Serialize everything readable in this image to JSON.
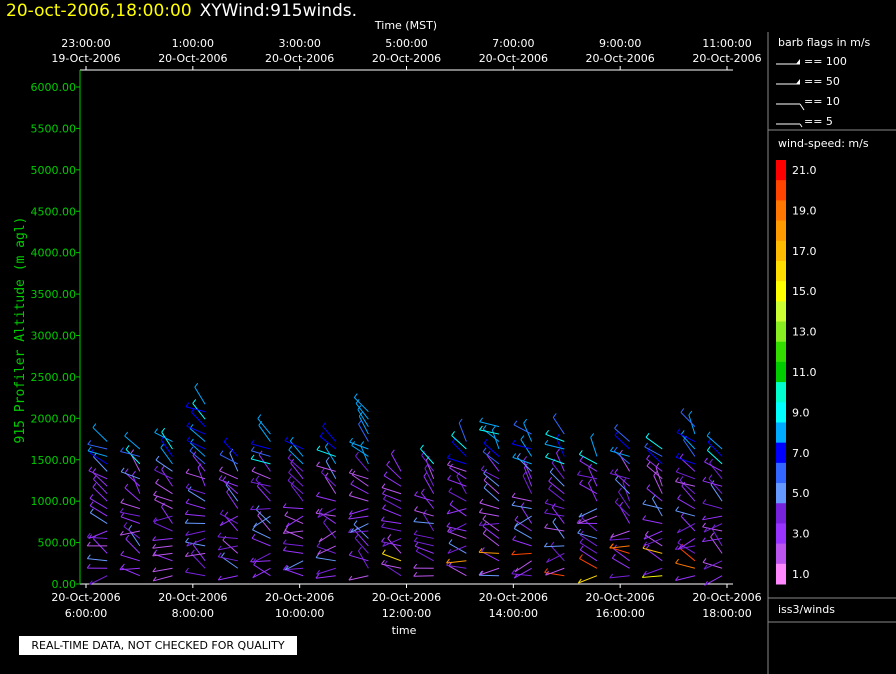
{
  "title": {
    "date": "20-oct-2006,18:00:00",
    "name": "XYWind:915winds."
  },
  "note": "REAL-TIME DATA, NOT CHECKED FOR QUALITY",
  "colors": {
    "background": "#000000",
    "axis_y": "#00cc00",
    "axis": "#ffffff",
    "title_date": "#ffff00"
  },
  "chart_data": {
    "type": "wind-barb time-height",
    "ylabel": "915 Profiler Altitude (m agl)",
    "yticks": [
      "6000.00",
      "5500.00",
      "5000.00",
      "4500.00",
      "4000.00",
      "3500.00",
      "3000.00",
      "2500.00",
      "2000.00",
      "1500.00",
      "1000.00",
      "500.00",
      "0.00"
    ],
    "ylim": [
      0,
      6000
    ],
    "top_axis_title": "Time (MST)",
    "top_ticks": [
      [
        "23:00:00",
        "19-Oct-2006"
      ],
      [
        "1:00:00",
        "20-Oct-2006"
      ],
      [
        "3:00:00",
        "20-Oct-2006"
      ],
      [
        "5:00:00",
        "20-Oct-2006"
      ],
      [
        "7:00:00",
        "20-Oct-2006"
      ],
      [
        "9:00:00",
        "20-Oct-2006"
      ],
      [
        "11:00:00",
        "20-Oct-2006"
      ]
    ],
    "bottom_axis_title": "time",
    "bottom_ticks": [
      [
        "20-Oct-2006",
        "6:00:00"
      ],
      [
        "20-Oct-2006",
        "8:00:00"
      ],
      [
        "20-Oct-2006",
        "10:00:00"
      ],
      [
        "20-Oct-2006",
        "12:00:00"
      ],
      [
        "20-Oct-2006",
        "14:00:00"
      ],
      [
        "20-Oct-2006",
        "16:00:00"
      ],
      [
        "20-Oct-2006",
        "18:00:00"
      ]
    ],
    "xlim_hours": [
      6,
      18
    ],
    "profile_hours": [
      6.5,
      7.1,
      7.7,
      8.3,
      8.9,
      9.5,
      10.1,
      10.7,
      11.3,
      11.9,
      12.5,
      13.1,
      13.7,
      14.3,
      14.9,
      15.5,
      16.1,
      16.7,
      17.3,
      17.8
    ],
    "barb_legend": {
      "title": "barb flags in m/s",
      "entries": [
        "== 100",
        "== 50",
        "== 10",
        "== 5"
      ]
    },
    "color_legend": {
      "title": "wind-speed: m/s",
      "levels": [
        {
          "label": "21.0",
          "color": "#ff0000"
        },
        {
          "label": "",
          "color": "#ff4400"
        },
        {
          "label": "19.0",
          "color": "#ff7700"
        },
        {
          "label": "",
          "color": "#ff9900"
        },
        {
          "label": "17.0",
          "color": "#ffbb00"
        },
        {
          "label": "",
          "color": "#ffdd00"
        },
        {
          "label": "15.0",
          "color": "#ffff00"
        },
        {
          "label": "",
          "color": "#ccff33"
        },
        {
          "label": "13.0",
          "color": "#88ee22"
        },
        {
          "label": "",
          "color": "#33dd00"
        },
        {
          "label": "11.0",
          "color": "#00cc00"
        },
        {
          "label": "",
          "color": "#00ffcc"
        },
        {
          "label": "9.0",
          "color": "#00ffff"
        },
        {
          "label": "",
          "color": "#00aaff"
        },
        {
          "label": "7.0",
          "color": "#0000ff"
        },
        {
          "label": "",
          "color": "#3366ff"
        },
        {
          "label": "5.0",
          "color": "#6699ff"
        },
        {
          "label": "",
          "color": "#7722dd"
        },
        {
          "label": "3.0",
          "color": "#9933ff"
        },
        {
          "label": "",
          "color": "#bb55ee"
        },
        {
          "label": "1.0",
          "color": "#ff88ff"
        }
      ]
    },
    "source_label": "iss3/winds"
  }
}
